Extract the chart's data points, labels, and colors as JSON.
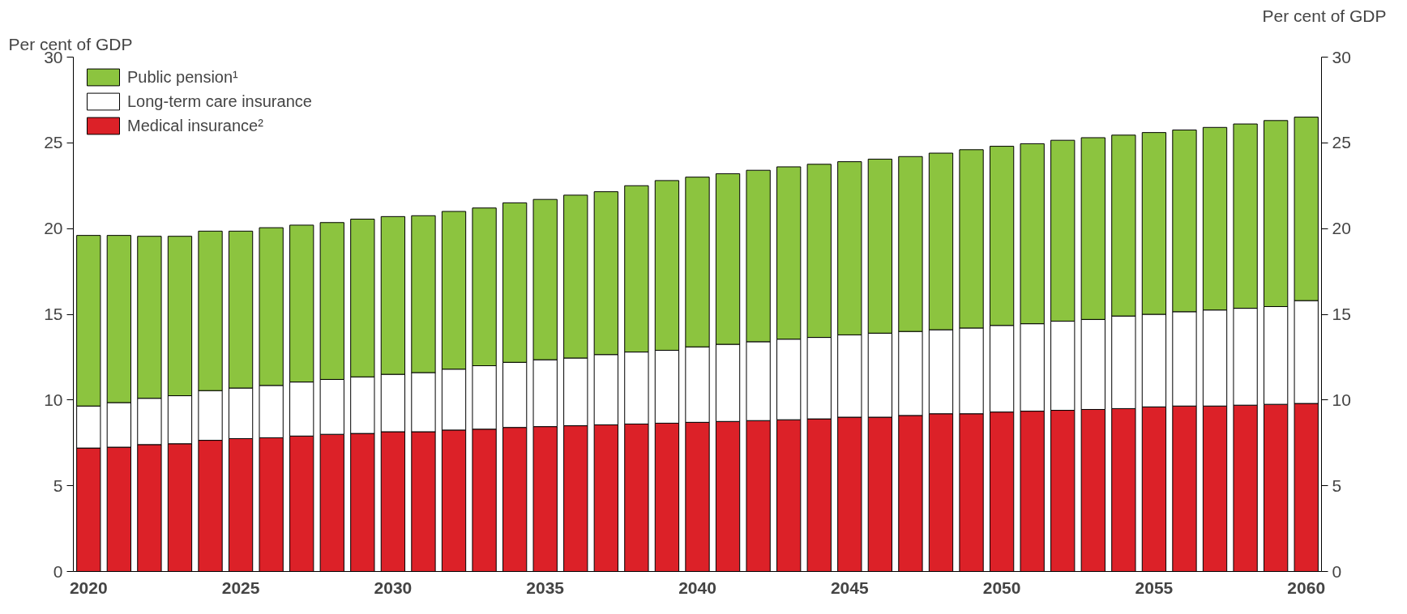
{
  "chart_data": {
    "type": "bar",
    "stacked": true,
    "ylabel": "Per cent of GDP",
    "y2label": "Per cent of GDP",
    "categories": [
      "2020",
      null,
      null,
      null,
      null,
      "2025",
      null,
      null,
      null,
      null,
      "2030",
      null,
      null,
      null,
      null,
      "2035",
      null,
      null,
      null,
      null,
      "2040",
      null,
      null,
      null,
      null,
      "2045",
      null,
      null,
      null,
      null,
      "2050",
      null,
      null,
      null,
      null,
      "2055",
      null,
      null,
      null,
      null,
      "2060"
    ],
    "ylim": [
      0,
      30
    ],
    "yticks": [
      0,
      5,
      10,
      15,
      20,
      25,
      30
    ],
    "y2lim": [
      0,
      30
    ],
    "y2ticks": [
      0,
      5,
      10,
      15,
      20,
      25,
      30
    ],
    "grid": false,
    "legend": "top left",
    "series": [
      {
        "name": "Medical insurance²",
        "color": "#dc2128",
        "values": [
          7.2,
          7.25,
          7.4,
          7.45,
          7.65,
          7.75,
          7.8,
          7.9,
          8.0,
          8.05,
          8.15,
          8.15,
          8.25,
          8.3,
          8.4,
          8.45,
          8.5,
          8.55,
          8.6,
          8.65,
          8.7,
          8.75,
          8.8,
          8.85,
          8.9,
          9.0,
          9.0,
          9.1,
          9.2,
          9.2,
          9.3,
          9.35,
          9.4,
          9.45,
          9.5,
          9.6,
          9.65,
          9.65,
          9.7,
          9.75,
          9.8
        ]
      },
      {
        "name": "Long-term care insurance",
        "color": "#ffffff",
        "values": [
          2.45,
          2.6,
          2.7,
          2.8,
          2.9,
          2.95,
          3.05,
          3.15,
          3.2,
          3.3,
          3.35,
          3.45,
          3.55,
          3.7,
          3.8,
          3.9,
          3.95,
          4.1,
          4.2,
          4.25,
          4.4,
          4.5,
          4.6,
          4.7,
          4.75,
          4.8,
          4.9,
          4.9,
          4.9,
          5.0,
          5.05,
          5.1,
          5.2,
          5.25,
          5.4,
          5.4,
          5.5,
          5.6,
          5.65,
          5.7,
          6.0
        ]
      },
      {
        "name": "Public pension¹",
        "color": "#8cc43f",
        "values": [
          9.95,
          9.75,
          9.45,
          9.3,
          9.3,
          9.15,
          9.2,
          9.15,
          9.15,
          9.2,
          9.2,
          9.15,
          9.2,
          9.2,
          9.3,
          9.35,
          9.5,
          9.5,
          9.7,
          9.9,
          9.9,
          9.95,
          10.0,
          10.05,
          10.1,
          10.1,
          10.15,
          10.2,
          10.3,
          10.4,
          10.45,
          10.5,
          10.55,
          10.6,
          10.55,
          10.6,
          10.6,
          10.65,
          10.75,
          10.85,
          10.7
        ]
      }
    ]
  }
}
